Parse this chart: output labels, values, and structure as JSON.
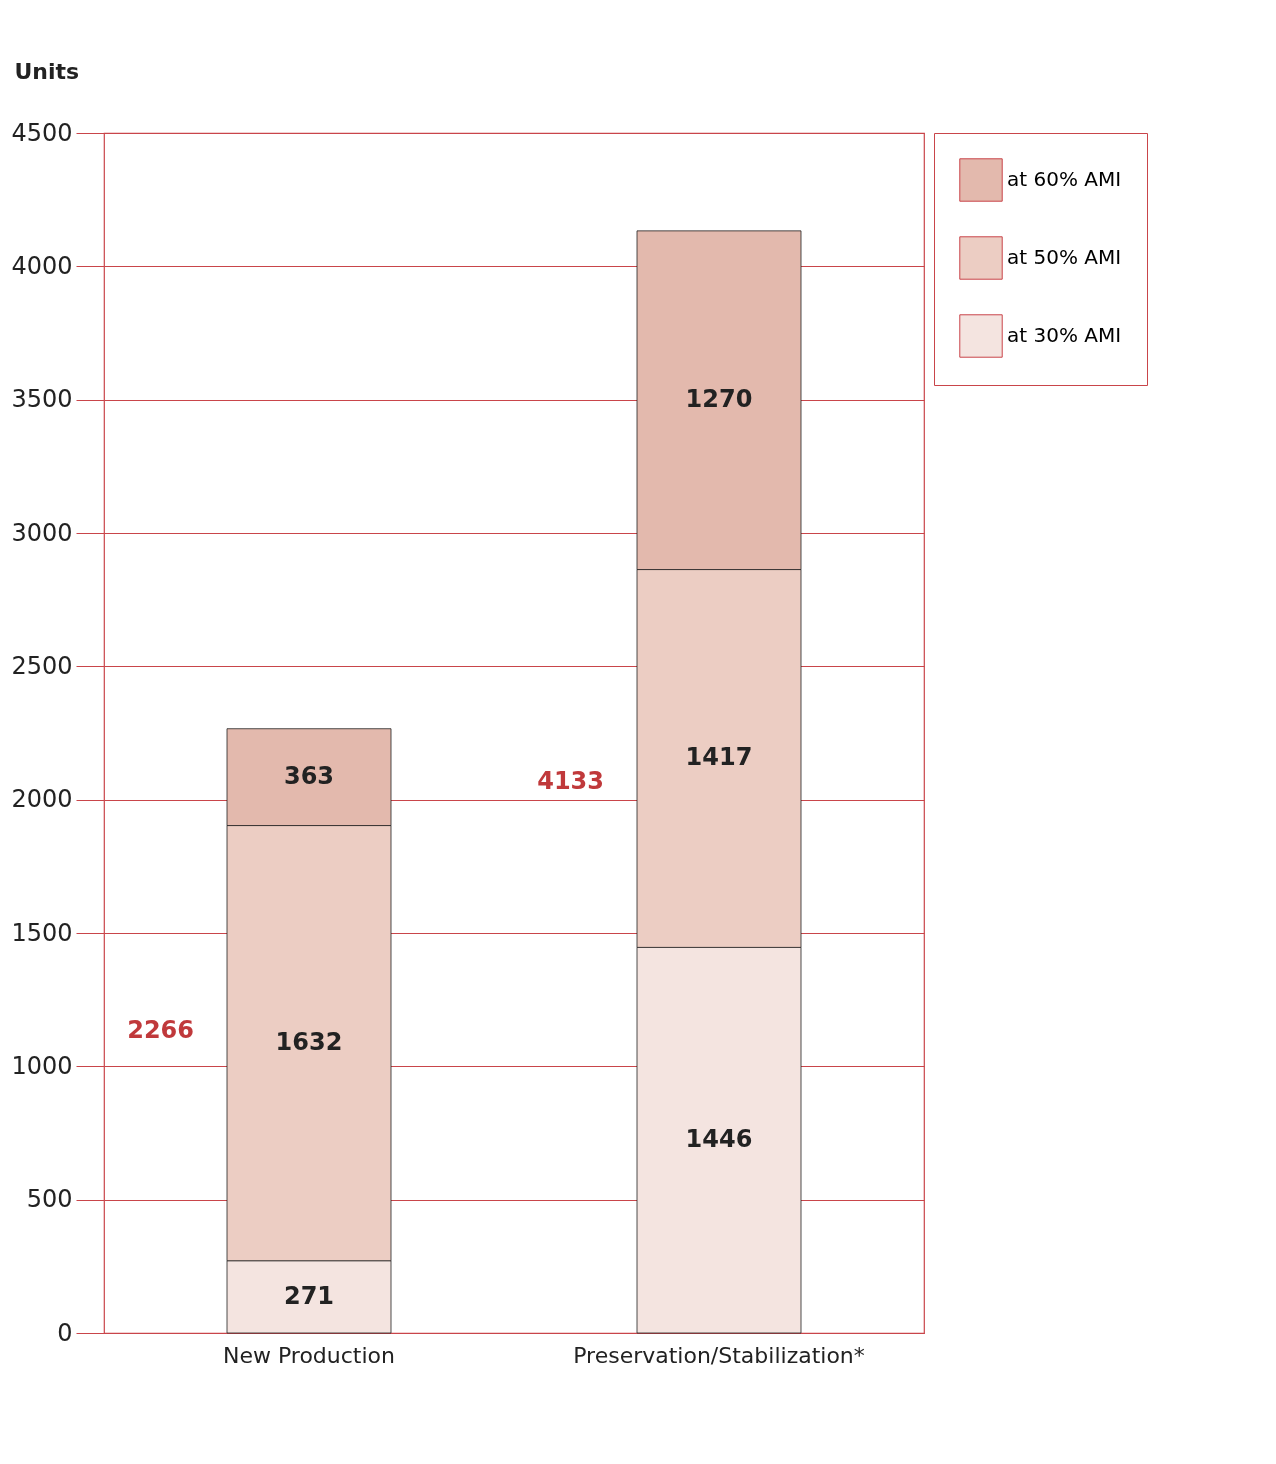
{
  "chart_data": {
    "type": "bar",
    "ylabel": "Units",
    "stacked": true,
    "data_labels": true,
    "categories": [
      "New Production",
      "Preservation/Stabilization*"
    ],
    "series": [
      {
        "name": "at 30% AMI",
        "color": "#f4e4e0",
        "values": [
          271,
          1446
        ]
      },
      {
        "name": "at 50% AMI",
        "color": "#eccdc3",
        "values": [
          1632,
          1417
        ]
      },
      {
        "name": "at 60% AMI",
        "color": "#e3b9ad",
        "values": [
          363,
          1270
        ]
      }
    ],
    "totals": [
      "2266",
      "4133"
    ],
    "ylim": [
      0,
      4500
    ],
    "yticks": [
      0,
      500,
      1000,
      1500,
      2000,
      2500,
      3000,
      3500,
      4000,
      4500
    ],
    "grid": "y",
    "legend": "top right"
  }
}
